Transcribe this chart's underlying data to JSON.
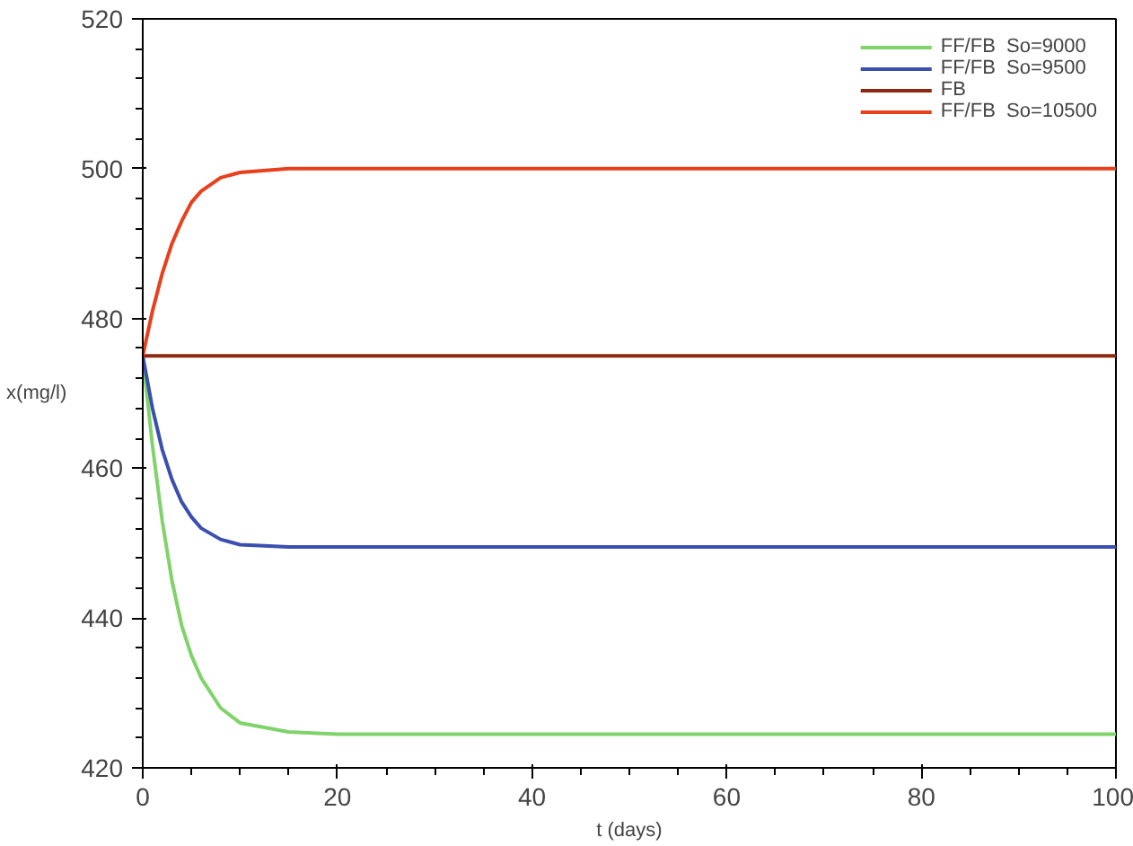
{
  "chart_data": {
    "type": "line",
    "xlabel": "t (days)",
    "ylabel": "x(mg/l)",
    "xlim": [
      0,
      100
    ],
    "ylim": [
      420,
      520
    ],
    "xticks": [
      0,
      20,
      40,
      60,
      80,
      100
    ],
    "yticks": [
      420,
      440,
      460,
      480,
      500,
      520
    ],
    "grid": false,
    "legend": "top right",
    "marker": "none",
    "line_style": "solid",
    "x": [
      0,
      1,
      2,
      3,
      4,
      5,
      6,
      8,
      10,
      15,
      20,
      100
    ],
    "series": [
      {
        "name": "FF/FB  So=9000",
        "color": "#7fd36a",
        "values": [
          475,
          463,
          453,
          445,
          439,
          435,
          432,
          428,
          426,
          424.8,
          424.5,
          424.5
        ]
      },
      {
        "name": "FF/FB  So=9500",
        "color": "#3a4fb0",
        "values": [
          475,
          468,
          462.5,
          458.5,
          455.5,
          453.5,
          452,
          450.5,
          449.8,
          449.5,
          449.5,
          449.5
        ]
      },
      {
        "name": "FB",
        "color": "#8b2a10",
        "values": [
          475,
          475,
          475,
          475,
          475,
          475,
          475,
          475,
          475,
          475,
          475,
          475
        ]
      },
      {
        "name": "FF/FB  So=10500",
        "color": "#e8401c",
        "values": [
          475,
          481,
          486,
          490,
          493,
          495.5,
          497,
          498.8,
          499.5,
          500,
          500,
          500
        ]
      }
    ]
  }
}
